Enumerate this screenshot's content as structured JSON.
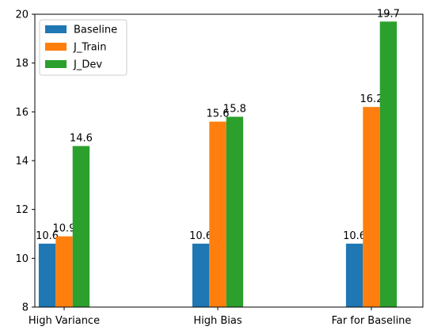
{
  "chart_data": {
    "type": "bar",
    "categories": [
      "High Variance",
      "High Bias",
      "Far for Baseline"
    ],
    "series": [
      {
        "name": "Baseline",
        "values": [
          10.6,
          10.6,
          10.6
        ],
        "color": "#1f77b4"
      },
      {
        "name": "J_Train",
        "values": [
          10.9,
          15.6,
          16.2
        ],
        "color": "#ff7f0e"
      },
      {
        "name": "J_Dev",
        "values": [
          14.6,
          15.8,
          19.7
        ],
        "color": "#2ca02c"
      }
    ],
    "data_labels": [
      [
        "10.6",
        "10.6",
        "10.6"
      ],
      [
        "10.9",
        "15.6",
        "16.2"
      ],
      [
        "14.6",
        "15.8",
        "19.7"
      ]
    ],
    "ylim": [
      8,
      20
    ],
    "yticks": [
      8,
      10,
      12,
      14,
      16,
      18,
      20
    ],
    "title": "",
    "xlabel": "",
    "ylabel": "",
    "grid": false,
    "legend_position": "upper-left"
  }
}
